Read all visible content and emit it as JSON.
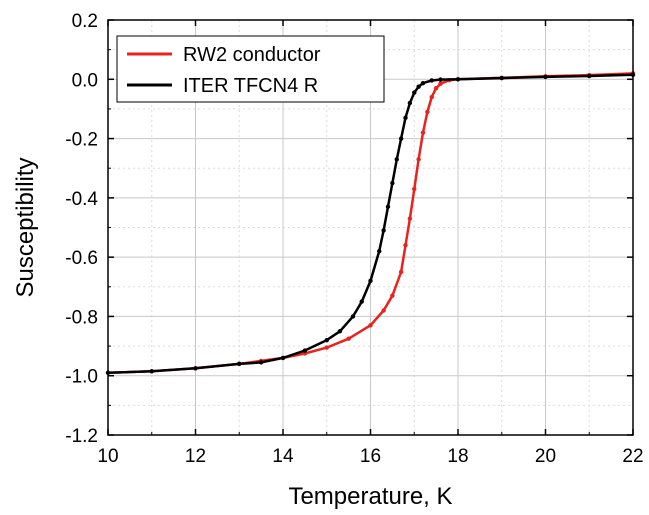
{
  "chart_data": {
    "type": "line",
    "title": "",
    "xlabel": "Temperature,  K",
    "ylabel": "Susceptibility",
    "xlim": [
      10,
      22
    ],
    "ylim": [
      -1.2,
      0.2
    ],
    "x_ticks": [
      10,
      12,
      14,
      16,
      18,
      20,
      22
    ],
    "y_ticks": [
      -1.2,
      -1.0,
      -0.8,
      -0.6,
      -0.4,
      -0.2,
      0.0,
      0.2
    ],
    "x_tick_labels": [
      "10",
      "12",
      "14",
      "16",
      "18",
      "20",
      "22"
    ],
    "y_tick_labels": [
      "-1.2",
      "-1.0",
      "-0.8",
      "-0.6",
      "-0.4",
      "-0.2",
      "0.0",
      "0.2"
    ],
    "grid": true,
    "legend_position": "top-left",
    "series": [
      {
        "name": "RW2 conductor",
        "color": "#e8231e",
        "x": [
          10,
          11,
          12,
          13,
          13.5,
          14,
          14.5,
          15,
          15.5,
          16,
          16.3,
          16.5,
          16.7,
          16.8,
          16.9,
          17.0,
          17.1,
          17.2,
          17.3,
          17.4,
          17.5,
          17.6,
          17.8,
          18,
          19,
          20,
          21,
          22
        ],
        "y": [
          -0.99,
          -0.985,
          -0.975,
          -0.96,
          -0.95,
          -0.94,
          -0.925,
          -0.905,
          -0.875,
          -0.83,
          -0.78,
          -0.73,
          -0.65,
          -0.56,
          -0.47,
          -0.37,
          -0.27,
          -0.18,
          -0.11,
          -0.06,
          -0.03,
          -0.015,
          -0.003,
          0.0,
          0.005,
          0.01,
          0.014,
          0.02
        ]
      },
      {
        "name": "ITER TFCN4 R",
        "color": "#000000",
        "x": [
          10,
          11,
          12,
          13,
          13.5,
          14,
          14.5,
          15,
          15.3,
          15.6,
          15.8,
          16,
          16.2,
          16.3,
          16.4,
          16.5,
          16.6,
          16.7,
          16.8,
          16.9,
          17.0,
          17.1,
          17.2,
          17.4,
          17.6,
          18,
          19,
          20,
          21,
          22
        ],
        "y": [
          -0.99,
          -0.985,
          -0.975,
          -0.96,
          -0.955,
          -0.94,
          -0.915,
          -0.88,
          -0.85,
          -0.8,
          -0.75,
          -0.68,
          -0.58,
          -0.51,
          -0.43,
          -0.35,
          -0.27,
          -0.2,
          -0.13,
          -0.08,
          -0.045,
          -0.025,
          -0.013,
          -0.004,
          -0.001,
          0.0,
          0.004,
          0.008,
          0.011,
          0.015
        ]
      }
    ]
  }
}
